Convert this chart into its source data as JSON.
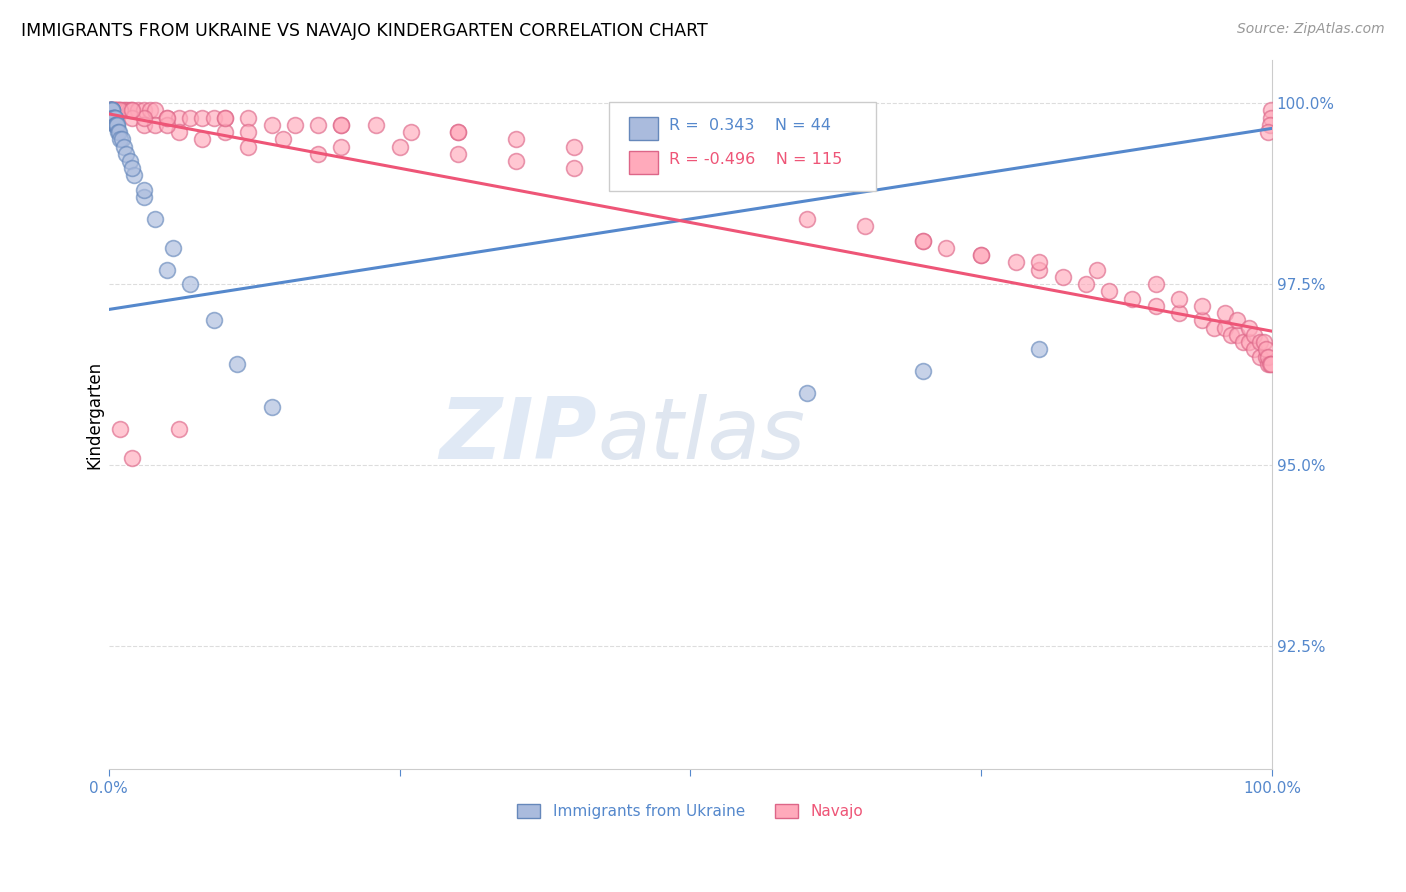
{
  "title": "IMMIGRANTS FROM UKRAINE VS NAVAJO KINDERGARTEN CORRELATION CHART",
  "source": "Source: ZipAtlas.com",
  "ylabel": "Kindergarten",
  "ytick_labels": [
    "92.5%",
    "95.0%",
    "97.5%",
    "100.0%"
  ],
  "ytick_values": [
    0.925,
    0.95,
    0.975,
    1.0
  ],
  "xlim": [
    0.0,
    1.0
  ],
  "ylim": [
    0.908,
    1.006
  ],
  "legend_blue_label": "Immigrants from Ukraine",
  "legend_pink_label": "Navajo",
  "legend_R_blue": "R =  0.343",
  "legend_N_blue": "N = 44",
  "legend_R_pink": "R = -0.496",
  "legend_N_pink": "N = 115",
  "blue_fill": "#AABBDD",
  "blue_edge": "#6688BB",
  "pink_fill": "#FFAABB",
  "pink_edge": "#DD6688",
  "blue_line": "#5588CC",
  "pink_line": "#EE5577",
  "grid_color": "#DDDDDD",
  "tick_color": "#5588CC",
  "blue_x": [
    0.001,
    0.001,
    0.001,
    0.002,
    0.002,
    0.002,
    0.002,
    0.003,
    0.003,
    0.003,
    0.003,
    0.003,
    0.004,
    0.004,
    0.004,
    0.004,
    0.005,
    0.005,
    0.005,
    0.006,
    0.006,
    0.007,
    0.007,
    0.008,
    0.009,
    0.01,
    0.011,
    0.013,
    0.015,
    0.018,
    0.022,
    0.03,
    0.04,
    0.055,
    0.07,
    0.09,
    0.11,
    0.14,
    0.03,
    0.02,
    0.05,
    0.6,
    0.7,
    0.8
  ],
  "blue_y": [
    0.999,
    0.999,
    0.999,
    0.999,
    0.999,
    0.999,
    0.999,
    0.999,
    0.999,
    0.999,
    0.999,
    0.998,
    0.998,
    0.998,
    0.998,
    0.998,
    0.998,
    0.998,
    0.997,
    0.997,
    0.997,
    0.997,
    0.997,
    0.996,
    0.996,
    0.995,
    0.995,
    0.994,
    0.993,
    0.992,
    0.99,
    0.987,
    0.984,
    0.98,
    0.975,
    0.97,
    0.964,
    0.958,
    0.988,
    0.991,
    0.977,
    0.96,
    0.963,
    0.966
  ],
  "pink_x": [
    0.001,
    0.001,
    0.001,
    0.002,
    0.002,
    0.003,
    0.003,
    0.004,
    0.004,
    0.005,
    0.005,
    0.006,
    0.007,
    0.008,
    0.009,
    0.01,
    0.012,
    0.014,
    0.016,
    0.018,
    0.02,
    0.025,
    0.03,
    0.035,
    0.04,
    0.05,
    0.06,
    0.07,
    0.08,
    0.09,
    0.1,
    0.12,
    0.14,
    0.16,
    0.18,
    0.2,
    0.23,
    0.26,
    0.3,
    0.35,
    0.4,
    0.45,
    0.5,
    0.02,
    0.03,
    0.04,
    0.06,
    0.08,
    0.12,
    0.18,
    0.03,
    0.05,
    0.1,
    0.15,
    0.2,
    0.3,
    0.35,
    0.4,
    0.12,
    0.25,
    0.6,
    0.65,
    0.7,
    0.72,
    0.75,
    0.78,
    0.8,
    0.82,
    0.84,
    0.86,
    0.88,
    0.9,
    0.92,
    0.94,
    0.95,
    0.96,
    0.965,
    0.97,
    0.975,
    0.98,
    0.985,
    0.99,
    0.995,
    0.997,
    0.999,
    0.999,
    0.998,
    0.997,
    0.01,
    0.02,
    0.05,
    0.1,
    0.2,
    0.3,
    0.5,
    0.7,
    0.75,
    0.8,
    0.85,
    0.9,
    0.92,
    0.94,
    0.96,
    0.97,
    0.98,
    0.985,
    0.99,
    0.993,
    0.995,
    0.997,
    0.998,
    0.999,
    0.01,
    0.02,
    0.06
  ],
  "pink_y": [
    0.999,
    0.999,
    0.999,
    0.999,
    0.999,
    0.999,
    0.999,
    0.999,
    0.999,
    0.999,
    0.999,
    0.999,
    0.999,
    0.999,
    0.999,
    0.999,
    0.999,
    0.999,
    0.999,
    0.999,
    0.999,
    0.999,
    0.999,
    0.999,
    0.999,
    0.998,
    0.998,
    0.998,
    0.998,
    0.998,
    0.998,
    0.998,
    0.997,
    0.997,
    0.997,
    0.997,
    0.997,
    0.996,
    0.996,
    0.995,
    0.994,
    0.993,
    0.992,
    0.998,
    0.997,
    0.997,
    0.996,
    0.995,
    0.994,
    0.993,
    0.998,
    0.997,
    0.996,
    0.995,
    0.994,
    0.993,
    0.992,
    0.991,
    0.996,
    0.994,
    0.984,
    0.983,
    0.981,
    0.98,
    0.979,
    0.978,
    0.977,
    0.976,
    0.975,
    0.974,
    0.973,
    0.972,
    0.971,
    0.97,
    0.969,
    0.969,
    0.968,
    0.968,
    0.967,
    0.967,
    0.966,
    0.965,
    0.965,
    0.964,
    0.999,
    0.998,
    0.997,
    0.996,
    0.999,
    0.999,
    0.998,
    0.998,
    0.997,
    0.996,
    0.994,
    0.981,
    0.979,
    0.978,
    0.977,
    0.975,
    0.973,
    0.972,
    0.971,
    0.97,
    0.969,
    0.968,
    0.967,
    0.967,
    0.966,
    0.965,
    0.964,
    0.964,
    0.955,
    0.951,
    0.955
  ],
  "blue_line_x": [
    0.0,
    1.0
  ],
  "blue_line_y": [
    0.9715,
    0.9965
  ],
  "pink_line_x": [
    0.0,
    1.0
  ],
  "pink_line_y": [
    0.9985,
    0.9685
  ]
}
